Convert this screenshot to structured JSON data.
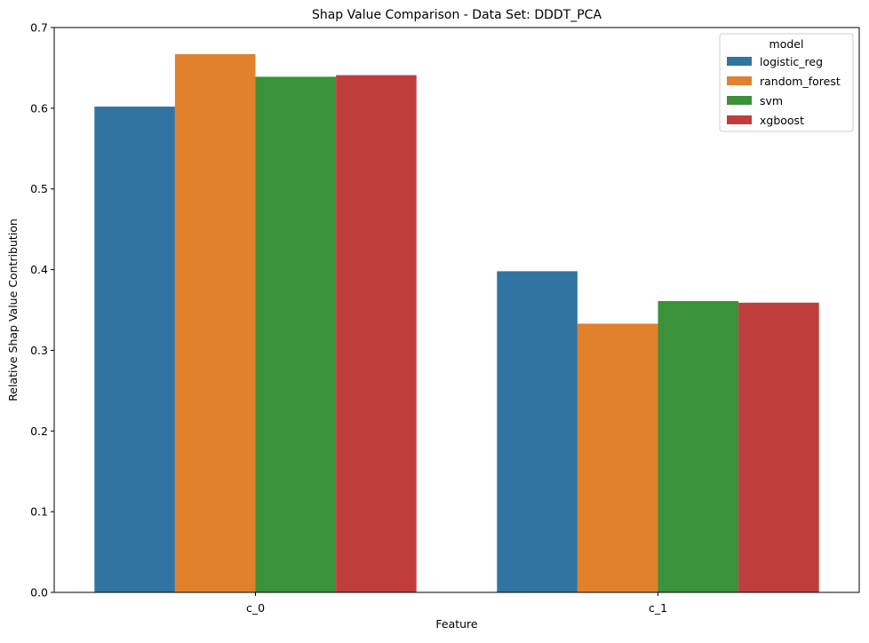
{
  "chart_data": {
    "type": "bar",
    "title": "Shap Value Comparison - Data Set: DDDT_PCA",
    "xlabel": "Feature",
    "ylabel": "Relative Shap Value Contribution",
    "categories": [
      "c_0",
      "c_1"
    ],
    "ylim": [
      0,
      0.7
    ],
    "yticks": [
      "0.0",
      "0.1",
      "0.2",
      "0.3",
      "0.4",
      "0.5",
      "0.6",
      "0.7"
    ],
    "grid": false,
    "legend": {
      "title": "model",
      "placement": "top-right"
    },
    "series": [
      {
        "name": "logistic_reg",
        "color": "#3274a1",
        "values": [
          0.602,
          0.398
        ]
      },
      {
        "name": "random_forest",
        "color": "#e1812c",
        "values": [
          0.667,
          0.333
        ]
      },
      {
        "name": "svm",
        "color": "#3a923a",
        "values": [
          0.639,
          0.361
        ]
      },
      {
        "name": "xgboost",
        "color": "#c03d3e",
        "values": [
          0.641,
          0.359
        ]
      }
    ]
  }
}
